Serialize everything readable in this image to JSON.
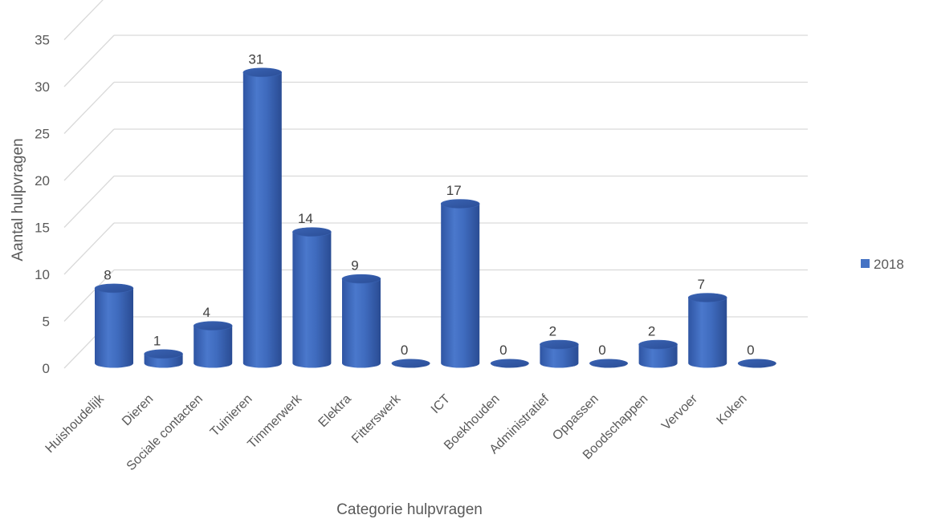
{
  "chart_data": {
    "type": "bar",
    "style": "3d-cylinder",
    "categories": [
      "Huishoudelijk",
      "Dieren",
      "Sociale contacten",
      "Tuinieren",
      "Timmerwerk",
      "Elektra",
      "Fitterswerk",
      "ICT",
      "Boekhouden",
      "Administratief",
      "Oppassen",
      "Boodschappen",
      "Vervoer",
      "Koken"
    ],
    "series": [
      {
        "name": "2018",
        "values": [
          8,
          1,
          4,
          31,
          14,
          9,
          0,
          17,
          0,
          2,
          0,
          2,
          7,
          0
        ],
        "color": "#4472C4"
      }
    ],
    "title": "",
    "xlabel": "Categorie hulpvragen",
    "ylabel": "Aantal hulpvragen",
    "ylim": [
      0,
      35
    ],
    "yticks": [
      0,
      5,
      10,
      15,
      20,
      25,
      30,
      35
    ],
    "grid": true,
    "legend_position": "right"
  }
}
